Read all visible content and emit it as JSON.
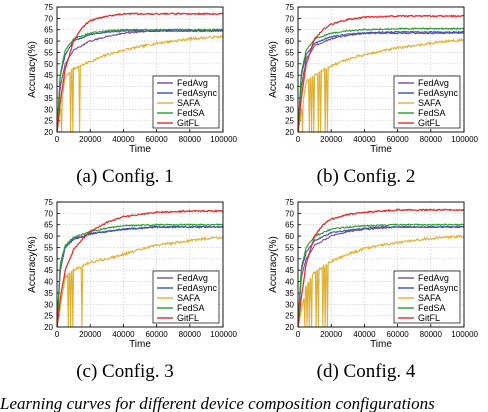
{
  "figure_caption": "Learning curves for different device composition configurations",
  "legend": [
    {
      "name": "FedAvg",
      "color": "#7b4b8f"
    },
    {
      "name": "FedAsync",
      "color": "#3355b0"
    },
    {
      "name": "SAFA",
      "color": "#e0b030"
    },
    {
      "name": "FedSA",
      "color": "#2a9a2a"
    },
    {
      "name": "GitFL",
      "color": "#e03030"
    }
  ],
  "chart_data": [
    {
      "type": "line",
      "caption": "(a) Config. 1",
      "xlabel": "Time",
      "ylabel": "Accuracy(%)",
      "xlim": [
        0,
        100000
      ],
      "ylim": [
        20,
        75
      ],
      "x_ticks": [
        "0",
        "20000",
        "40000",
        "60000",
        "80000",
        "100000"
      ],
      "y_ticks": [
        "20",
        "25",
        "30",
        "35",
        "40",
        "45",
        "50",
        "55",
        "60",
        "65",
        "70",
        "75"
      ],
      "grid": true,
      "legend_position": "bottom-right",
      "series": [
        {
          "name": "FedAvg",
          "x": [
            0,
            2000,
            5000,
            10000,
            20000,
            30000,
            40000,
            50000,
            60000,
            80000,
            100000
          ],
          "values": [
            20,
            40,
            50,
            56,
            60,
            62,
            63.5,
            64,
            64.5,
            64.5,
            64.5
          ]
        },
        {
          "name": "FedAsync",
          "x": [
            0,
            2000,
            5000,
            10000,
            20000,
            30000,
            40000,
            50000,
            60000,
            80000,
            100000
          ],
          "values": [
            20,
            45,
            54,
            60,
            63,
            64,
            64.5,
            64.5,
            64.5,
            64.5,
            64.5
          ]
        },
        {
          "name": "SAFA",
          "x": [
            0,
            5000,
            10000,
            20000,
            30000,
            40000,
            50000,
            60000,
            70000,
            80000,
            90000,
            100000
          ],
          "values": [
            20,
            44,
            48,
            51,
            54,
            56,
            57.5,
            59,
            60,
            61,
            61.5,
            62
          ]
        },
        {
          "name": "FedSA",
          "x": [
            0,
            2000,
            5000,
            10000,
            20000,
            30000,
            40000,
            60000,
            80000,
            100000
          ],
          "values": [
            20,
            46,
            56,
            61,
            63.5,
            64.5,
            65,
            65,
            65,
            65
          ]
        },
        {
          "name": "GitFL",
          "x": [
            0,
            2000,
            5000,
            10000,
            15000,
            20000,
            30000,
            40000,
            60000,
            80000,
            100000
          ],
          "values": [
            20,
            33,
            48,
            60,
            66,
            69,
            71,
            72,
            72,
            72,
            72
          ]
        }
      ]
    },
    {
      "type": "line",
      "caption": "(b) Config. 2",
      "xlabel": "Time",
      "ylabel": "Accuracy(%)",
      "xlim": [
        0,
        100000
      ],
      "ylim": [
        20,
        75
      ],
      "x_ticks": [
        "0",
        "20000",
        "40000",
        "60000",
        "80000",
        "100000"
      ],
      "y_ticks": [
        "20",
        "25",
        "30",
        "35",
        "40",
        "45",
        "50",
        "55",
        "60",
        "65",
        "70",
        "75"
      ],
      "grid": true,
      "legend_position": "bottom-right",
      "series": [
        {
          "name": "FedAvg",
          "x": [
            0,
            2000,
            5000,
            10000,
            20000,
            30000,
            40000,
            50000,
            60000,
            80000,
            100000
          ],
          "values": [
            20,
            40,
            52,
            58,
            61,
            62.5,
            63.5,
            64,
            64,
            64,
            64
          ]
        },
        {
          "name": "FedAsync",
          "x": [
            0,
            2000,
            5000,
            10000,
            20000,
            30000,
            40000,
            50000,
            60000,
            80000,
            100000
          ],
          "values": [
            20,
            45,
            54,
            59,
            62,
            63,
            63.5,
            63.5,
            63.5,
            63.5,
            63.5
          ]
        },
        {
          "name": "SAFA",
          "x": [
            0,
            5000,
            10000,
            20000,
            30000,
            40000,
            50000,
            60000,
            70000,
            80000,
            90000,
            100000
          ],
          "values": [
            20,
            42,
            45,
            49,
            52,
            54,
            55.5,
            57,
            58,
            59,
            60,
            60.5
          ]
        },
        {
          "name": "FedSA",
          "x": [
            0,
            2000,
            5000,
            10000,
            20000,
            30000,
            40000,
            60000,
            80000,
            100000
          ],
          "values": [
            20,
            46,
            56,
            61,
            63.5,
            64.5,
            65,
            65.5,
            65.5,
            65.5
          ]
        },
        {
          "name": "GitFL",
          "x": [
            0,
            2000,
            5000,
            10000,
            15000,
            20000,
            30000,
            40000,
            60000,
            80000,
            100000
          ],
          "values": [
            20,
            35,
            50,
            61,
            65,
            67.5,
            69.5,
            70.5,
            71,
            71,
            71
          ]
        }
      ]
    },
    {
      "type": "line",
      "caption": "(c) Config. 3",
      "xlabel": "Time",
      "ylabel": "Accuracy(%)",
      "xlim": [
        0,
        100000
      ],
      "ylim": [
        20,
        75
      ],
      "x_ticks": [
        "0",
        "20000",
        "40000",
        "60000",
        "80000",
        "100000"
      ],
      "y_ticks": [
        "20",
        "25",
        "30",
        "35",
        "40",
        "45",
        "50",
        "55",
        "60",
        "65",
        "70",
        "75"
      ],
      "grid": true,
      "legend_position": "bottom-right",
      "series": [
        {
          "name": "FedAvg",
          "x": [
            0,
            2000,
            5000,
            10000,
            20000,
            30000,
            40000,
            50000,
            60000,
            80000,
            100000
          ],
          "values": [
            20,
            45,
            55,
            59,
            61,
            62,
            63,
            63.5,
            64,
            64,
            64
          ]
        },
        {
          "name": "FedAsync",
          "x": [
            0,
            2000,
            5000,
            10000,
            20000,
            30000,
            40000,
            50000,
            60000,
            80000,
            100000
          ],
          "values": [
            20,
            48,
            55,
            58.5,
            61,
            62,
            63,
            63.5,
            64,
            64,
            64
          ]
        },
        {
          "name": "SAFA",
          "x": [
            0,
            5000,
            10000,
            20000,
            30000,
            40000,
            50000,
            60000,
            70000,
            80000,
            90000,
            100000
          ],
          "values": [
            20,
            42,
            45,
            48.5,
            50,
            52,
            54,
            56,
            57,
            58,
            59,
            59.5
          ]
        },
        {
          "name": "FedSA",
          "x": [
            0,
            2000,
            5000,
            10000,
            20000,
            30000,
            40000,
            60000,
            80000,
            100000
          ],
          "values": [
            20,
            48,
            56,
            59.5,
            62,
            63.5,
            64.5,
            65,
            65,
            65
          ]
        },
        {
          "name": "GitFL",
          "x": [
            0,
            2000,
            5000,
            10000,
            15000,
            20000,
            30000,
            40000,
            60000,
            80000,
            100000
          ],
          "values": [
            20,
            33,
            45,
            54,
            58.5,
            62,
            66,
            68.5,
            70.5,
            71,
            71
          ]
        }
      ]
    },
    {
      "type": "line",
      "caption": "(d) Config. 4",
      "xlabel": "Time",
      "ylabel": "Accuracy(%)",
      "xlim": [
        0,
        100000
      ],
      "ylim": [
        20,
        75
      ],
      "x_ticks": [
        "0",
        "20000",
        "40000",
        "60000",
        "80000",
        "100000"
      ],
      "y_ticks": [
        "20",
        "25",
        "30",
        "35",
        "40",
        "45",
        "50",
        "55",
        "60",
        "65",
        "70",
        "75"
      ],
      "grid": true,
      "legend_position": "bottom-right",
      "series": [
        {
          "name": "FedAvg",
          "x": [
            0,
            2000,
            5000,
            10000,
            20000,
            30000,
            40000,
            50000,
            60000,
            80000,
            100000
          ],
          "values": [
            20,
            42,
            50,
            56,
            60,
            62,
            63,
            63.5,
            64,
            64,
            64
          ]
        },
        {
          "name": "FedAsync",
          "x": [
            0,
            2000,
            5000,
            10000,
            20000,
            30000,
            40000,
            50000,
            60000,
            80000,
            100000
          ],
          "values": [
            20,
            45,
            53,
            58,
            61.5,
            62.5,
            63.5,
            64,
            64,
            64,
            64
          ]
        },
        {
          "name": "SAFA",
          "x": [
            0,
            5000,
            10000,
            20000,
            30000,
            40000,
            50000,
            60000,
            70000,
            80000,
            90000,
            100000
          ],
          "values": [
            20,
            38,
            44,
            49,
            52,
            54.5,
            56,
            57,
            58,
            59,
            59.5,
            60
          ]
        },
        {
          "name": "FedSA",
          "x": [
            0,
            2000,
            5000,
            10000,
            20000,
            30000,
            40000,
            60000,
            80000,
            100000
          ],
          "values": [
            20,
            46,
            55,
            60,
            63,
            64,
            64.5,
            65,
            65,
            65
          ]
        },
        {
          "name": "GitFL",
          "x": [
            0,
            2000,
            5000,
            10000,
            15000,
            20000,
            30000,
            40000,
            60000,
            80000,
            100000
          ],
          "values": [
            20,
            33,
            48,
            60,
            65,
            67.5,
            69.5,
            70.5,
            71.5,
            71.5,
            71.5
          ]
        }
      ]
    }
  ]
}
